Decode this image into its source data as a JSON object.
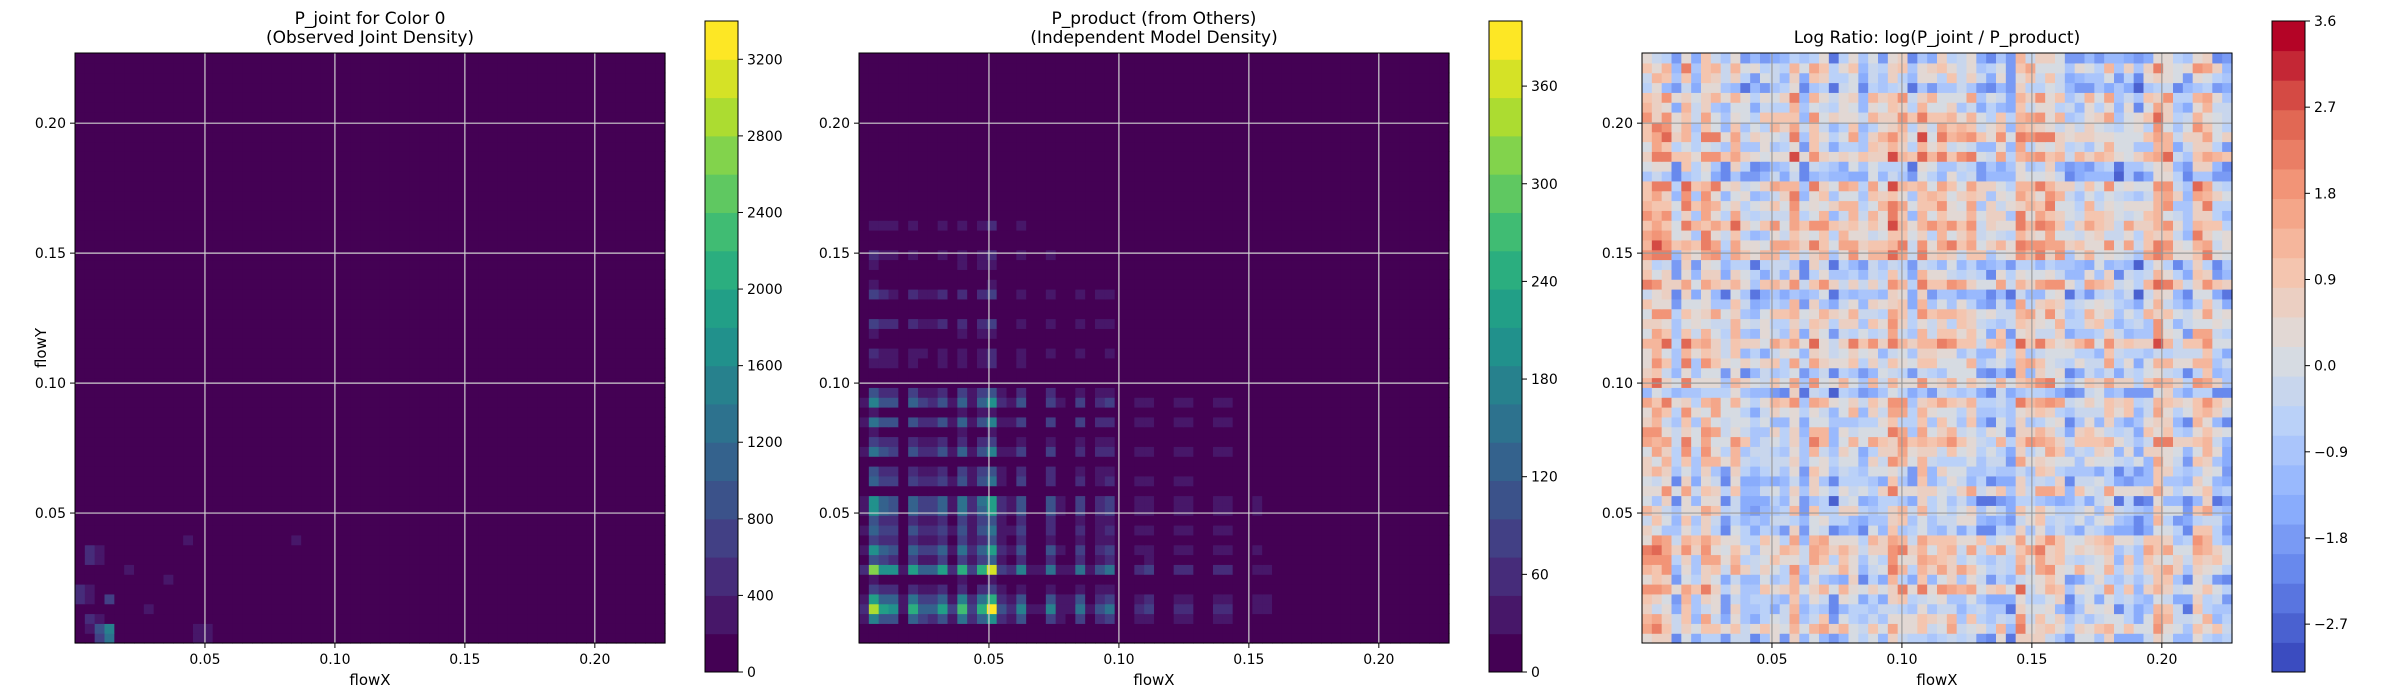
{
  "chart_data": [
    {
      "type": "heatmap",
      "title": "P_joint for Color 0\n(Observed Joint Density)",
      "xlabel": "flowX",
      "ylabel": "flowY",
      "xlim": [
        0.0,
        0.227
      ],
      "ylim": [
        0.0,
        0.227
      ],
      "xticks": [
        "0.05",
        "0.10",
        "0.15",
        "0.20"
      ],
      "yticks": [
        "0.05",
        "0.10",
        "0.15",
        "0.20"
      ],
      "grid": true,
      "colormap": "viridis",
      "colorbar": {
        "min": 0,
        "max": 3400,
        "ticks": [
          "0",
          "400",
          "800",
          "1200",
          "1600",
          "2000",
          "2400",
          "2800",
          "3200"
        ]
      },
      "peaks": [
        {
          "x": 0.012,
          "y": 0.004,
          "value": 2400
        },
        {
          "x": 0.007,
          "y": 0.034,
          "value": 900
        },
        {
          "x": 0.003,
          "y": 0.019,
          "value": 800
        },
        {
          "x": 0.013,
          "y": 0.017,
          "value": 650
        },
        {
          "x": 0.006,
          "y": 0.009,
          "value": 550
        },
        {
          "x": 0.049,
          "y": 0.004,
          "value": 500
        },
        {
          "x": 0.03,
          "y": 0.013,
          "value": 320
        },
        {
          "x": 0.045,
          "y": 0.04,
          "value": 300
        },
        {
          "x": 0.05,
          "y": 0.03,
          "value": 260
        },
        {
          "x": 0.06,
          "y": 0.025,
          "value": 240
        },
        {
          "x": 0.085,
          "y": 0.04,
          "value": 220
        },
        {
          "x": 0.065,
          "y": 0.12,
          "value": 220
        },
        {
          "x": 0.03,
          "y": 0.045,
          "value": 200
        },
        {
          "x": 0.075,
          "y": 0.035,
          "value": 180
        },
        {
          "x": 0.04,
          "y": 0.008,
          "value": 200
        },
        {
          "x": 0.01,
          "y": 0.1,
          "value": 180
        },
        {
          "x": 0.065,
          "y": 0.055,
          "value": 160
        },
        {
          "x": 0.025,
          "y": 0.06,
          "value": 160
        },
        {
          "x": 0.055,
          "y": 0.015,
          "value": 200
        },
        {
          "x": 0.02,
          "y": 0.028,
          "value": 260
        },
        {
          "x": 0.035,
          "y": 0.024,
          "value": 240
        },
        {
          "x": 0.015,
          "y": 0.075,
          "value": 170
        }
      ]
    },
    {
      "type": "heatmap",
      "title": "P_product (from Others)\n(Independent Model Density)",
      "xlabel": "flowX",
      "ylabel": "",
      "xlim": [
        0.0,
        0.227
      ],
      "ylim": [
        0.0,
        0.227
      ],
      "xticks": [
        "0.05",
        "0.10",
        "0.15",
        "0.20"
      ],
      "yticks": [
        "0.05",
        "0.10",
        "0.15",
        "0.20"
      ],
      "grid": true,
      "colormap": "viridis",
      "colorbar": {
        "min": 0,
        "max": 400,
        "ticks": [
          "0",
          "60",
          "120",
          "180",
          "240",
          "300",
          "360"
        ]
      },
      "x_marginal": [
        {
          "x": 0.006,
          "w": 1.0
        },
        {
          "x": 0.012,
          "w": 0.7
        },
        {
          "x": 0.022,
          "w": 0.8
        },
        {
          "x": 0.031,
          "w": 0.75
        },
        {
          "x": 0.04,
          "w": 0.8
        },
        {
          "x": 0.049,
          "w": 0.9
        },
        {
          "x": 0.052,
          "w": 0.6
        },
        {
          "x": 0.062,
          "w": 0.55
        },
        {
          "x": 0.074,
          "w": 0.5
        },
        {
          "x": 0.085,
          "w": 0.45
        },
        {
          "x": 0.095,
          "w": 0.55
        },
        {
          "x": 0.11,
          "w": 0.3
        },
        {
          "x": 0.125,
          "w": 0.28
        },
        {
          "x": 0.14,
          "w": 0.25
        },
        {
          "x": 0.155,
          "w": 0.18
        }
      ],
      "y_marginal": [
        {
          "y": 0.012,
          "w": 1.0
        },
        {
          "y": 0.018,
          "w": 0.55
        },
        {
          "y": 0.029,
          "w": 0.85
        },
        {
          "y": 0.037,
          "w": 0.55
        },
        {
          "y": 0.045,
          "w": 0.45
        },
        {
          "y": 0.053,
          "w": 0.75
        },
        {
          "y": 0.064,
          "w": 0.45
        },
        {
          "y": 0.075,
          "w": 0.45
        },
        {
          "y": 0.085,
          "w": 0.4
        },
        {
          "y": 0.094,
          "w": 0.55
        },
        {
          "y": 0.11,
          "w": 0.2
        },
        {
          "y": 0.122,
          "w": 0.22
        },
        {
          "y": 0.135,
          "w": 0.2
        },
        {
          "y": 0.148,
          "w": 0.16
        },
        {
          "y": 0.16,
          "w": 0.12
        }
      ]
    },
    {
      "type": "heatmap",
      "title": "Log Ratio: log(P_joint / P_product)",
      "xlabel": "flowX",
      "ylabel": "",
      "xlim": [
        0.0,
        0.227
      ],
      "ylim": [
        0.0,
        0.227
      ],
      "xticks": [
        "0.05",
        "0.10",
        "0.15",
        "0.20"
      ],
      "yticks": [
        "0.05",
        "0.10",
        "0.15",
        "0.20"
      ],
      "grid": true,
      "colormap": "coolwarm",
      "colorbar": {
        "min": -3.2,
        "max": 3.6,
        "ticks": [
          "−2.7",
          "−1.8",
          "−0.9",
          "0.0",
          "0.9",
          "1.8",
          "2.7",
          "3.6"
        ]
      }
    }
  ]
}
